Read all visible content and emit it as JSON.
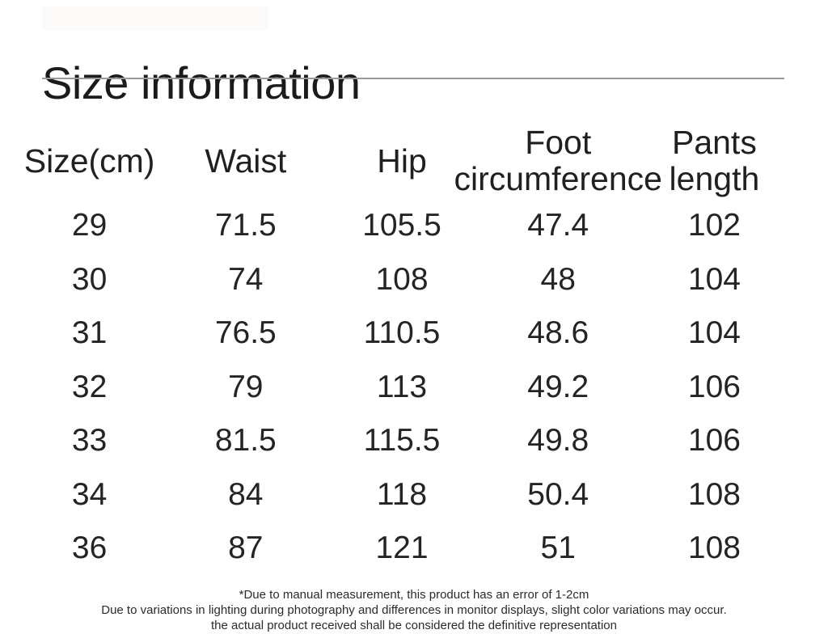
{
  "title": "Size information",
  "table": {
    "columns": [
      {
        "label": "Size(cm)",
        "lines": [
          "Size(cm)"
        ]
      },
      {
        "label": "Waist",
        "lines": [
          "Waist"
        ]
      },
      {
        "label": "Hip",
        "lines": [
          "Hip"
        ]
      },
      {
        "label": "Foot circumference",
        "lines": [
          "Foot",
          "circumference"
        ]
      },
      {
        "label": "Pants length",
        "lines": [
          "Pants",
          "length"
        ]
      }
    ],
    "rows": [
      [
        "29",
        "71.5",
        "105.5",
        "47.4",
        "102"
      ],
      [
        "30",
        "74",
        "108",
        "48",
        "104"
      ],
      [
        "31",
        "76.5",
        "110.5",
        "48.6",
        "104"
      ],
      [
        "32",
        "79",
        "113",
        "49.2",
        "106"
      ],
      [
        "33",
        "81.5",
        "115.5",
        "49.8",
        "106"
      ],
      [
        "34",
        "84",
        "118",
        "50.4",
        "108"
      ],
      [
        "36",
        "87",
        "121",
        "51",
        "108"
      ]
    ]
  },
  "footnotes": [
    "*Due to manual measurement, this product has an error of 1-2cm",
    "Due to variations in lighting during photography and differences in monitor displays, slight color variations may occur.",
    "the actual product received shall be considered the definitive representation"
  ],
  "colors": {
    "background": "#ffffff",
    "text": "#1f1f1f",
    "underline": "#9a9a9a"
  }
}
